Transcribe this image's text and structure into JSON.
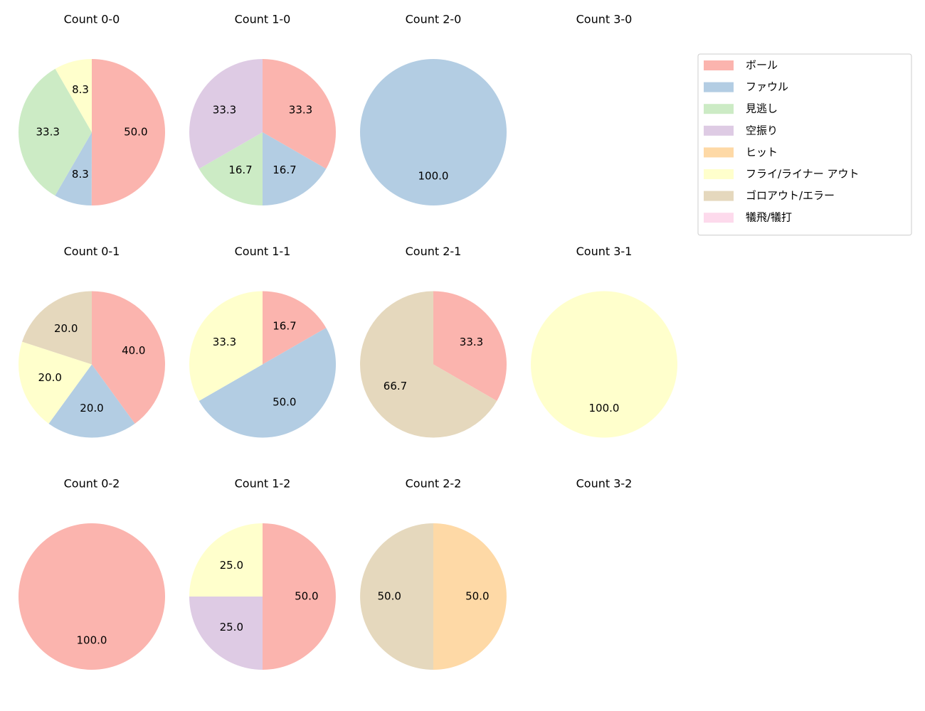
{
  "chart_data": [
    {
      "type": "pie",
      "title": "Count 0-0",
      "categories": [
        "ボール",
        "ファウル",
        "見逃し",
        "フライ/ライナー アウト"
      ],
      "values": [
        50,
        8.3,
        33.3,
        8.3
      ],
      "value_labels": [
        "50.0",
        "8.3",
        "33.3",
        "8.3"
      ],
      "colors": [
        "#fbb4ae",
        "#b3cde3",
        "#ccebc5",
        "#ffffcc"
      ]
    },
    {
      "type": "pie",
      "title": "Count 1-0",
      "categories": [
        "ボール",
        "ファウル",
        "見逃し",
        "空振り"
      ],
      "values": [
        33.3,
        16.7,
        16.7,
        33.3
      ],
      "value_labels": [
        "33.3",
        "16.7",
        "16.7",
        "33.3"
      ],
      "colors": [
        "#fbb4ae",
        "#b3cde3",
        "#ccebc5",
        "#decbe4"
      ]
    },
    {
      "type": "pie",
      "title": "Count 2-0",
      "categories": [
        "ファウル"
      ],
      "values": [
        100
      ],
      "value_labels": [
        "100.0"
      ],
      "colors": [
        "#b3cde3"
      ]
    },
    {
      "type": "pie",
      "title": "Count 3-0",
      "categories": [],
      "values": [],
      "value_labels": [],
      "colors": []
    },
    {
      "type": "pie",
      "title": "Count 0-1",
      "categories": [
        "ボール",
        "ファウル",
        "フライ/ライナー アウト",
        "ゴロアウト/エラー"
      ],
      "values": [
        40,
        20,
        20,
        20
      ],
      "value_labels": [
        "40.0",
        "20.0",
        "20.0",
        "20.0"
      ],
      "colors": [
        "#fbb4ae",
        "#b3cde3",
        "#ffffcc",
        "#e5d8bd"
      ]
    },
    {
      "type": "pie",
      "title": "Count 1-1",
      "categories": [
        "ボール",
        "ファウル",
        "フライ/ライナー アウト"
      ],
      "values": [
        16.7,
        50,
        33.3
      ],
      "value_labels": [
        "16.7",
        "50.0",
        "33.3"
      ],
      "colors": [
        "#fbb4ae",
        "#b3cde3",
        "#ffffcc"
      ]
    },
    {
      "type": "pie",
      "title": "Count 2-1",
      "categories": [
        "ボール",
        "ゴロアウト/エラー"
      ],
      "values": [
        33.3,
        66.7
      ],
      "value_labels": [
        "33.3",
        "66.7"
      ],
      "colors": [
        "#fbb4ae",
        "#e5d8bd"
      ]
    },
    {
      "type": "pie",
      "title": "Count 3-1",
      "categories": [
        "フライ/ライナー アウト"
      ],
      "values": [
        100
      ],
      "value_labels": [
        "100.0"
      ],
      "colors": [
        "#ffffcc"
      ]
    },
    {
      "type": "pie",
      "title": "Count 0-2",
      "categories": [
        "ボール"
      ],
      "values": [
        100
      ],
      "value_labels": [
        "100.0"
      ],
      "colors": [
        "#fbb4ae"
      ]
    },
    {
      "type": "pie",
      "title": "Count 1-2",
      "categories": [
        "ボール",
        "空振り",
        "フライ/ライナー アウト"
      ],
      "values": [
        50,
        25,
        25
      ],
      "value_labels": [
        "50.0",
        "25.0",
        "25.0"
      ],
      "colors": [
        "#fbb4ae",
        "#decbe4",
        "#ffffcc"
      ]
    },
    {
      "type": "pie",
      "title": "Count 2-2",
      "categories": [
        "ヒット",
        "ゴロアウト/エラー"
      ],
      "values": [
        50,
        50
      ],
      "value_labels": [
        "50.0",
        "50.0"
      ],
      "colors": [
        "#fed9a6",
        "#e5d8bd"
      ]
    },
    {
      "type": "pie",
      "title": "Count 3-2",
      "categories": [],
      "values": [],
      "value_labels": [],
      "colors": []
    }
  ],
  "legend": {
    "position": "upper right",
    "labels": [
      "ボール",
      "ファウル",
      "見逃し",
      "空振り",
      "ヒット",
      "フライ/ライナー アウト",
      "ゴロアウト/エラー",
      "犠飛/犠打"
    ],
    "colors": [
      "#fbb4ae",
      "#b3cde3",
      "#ccebc5",
      "#decbe4",
      "#fed9a6",
      "#ffffcc",
      "#e5d8bd",
      "#fddaec"
    ]
  }
}
